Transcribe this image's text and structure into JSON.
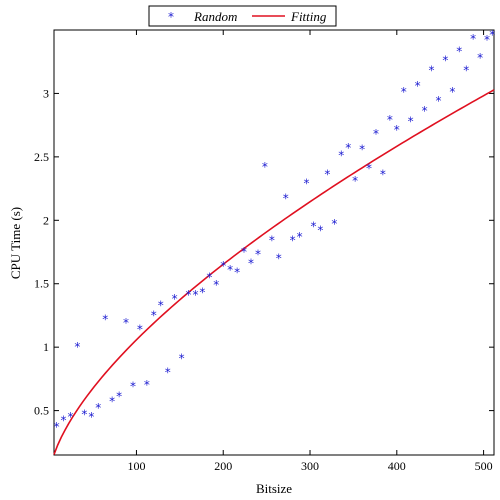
{
  "chart_data": {
    "type": "scatter",
    "title": "",
    "xlabel": "Bitsize",
    "ylabel": "CPU Time (s)",
    "xlim": [
      5,
      512
    ],
    "ylim": [
      0.15,
      3.5
    ],
    "x_ticks": [
      100,
      200,
      300,
      400,
      500
    ],
    "y_ticks": [
      0.5,
      1,
      1.5,
      2,
      2.5,
      3
    ],
    "x_tick_labels": [
      "100",
      "200",
      "300",
      "400",
      "500"
    ],
    "y_tick_labels": [
      "0.5",
      "1",
      "1.5",
      "2",
      "2.5",
      "3"
    ],
    "grid": false,
    "legend_position": "top-center",
    "series": [
      {
        "name": "Random",
        "kind": "scatter",
        "marker": "*",
        "color": "#1a1ad0",
        "points": [
          [
            8,
            0.37
          ],
          [
            16,
            0.42
          ],
          [
            24,
            0.45
          ],
          [
            32,
            1.0
          ],
          [
            40,
            0.47
          ],
          [
            48,
            0.45
          ],
          [
            56,
            0.52
          ],
          [
            64,
            1.22
          ],
          [
            72,
            0.57
          ],
          [
            80,
            0.61
          ],
          [
            88,
            1.19
          ],
          [
            96,
            0.69
          ],
          [
            104,
            1.14
          ],
          [
            112,
            0.7
          ],
          [
            120,
            1.25
          ],
          [
            128,
            1.33
          ],
          [
            136,
            0.8
          ],
          [
            144,
            1.38
          ],
          [
            152,
            0.91
          ],
          [
            160,
            1.41
          ],
          [
            168,
            1.41
          ],
          [
            176,
            1.43
          ],
          [
            184,
            1.55
          ],
          [
            192,
            1.49
          ],
          [
            200,
            1.64
          ],
          [
            208,
            1.61
          ],
          [
            216,
            1.59
          ],
          [
            224,
            1.75
          ],
          [
            232,
            1.66
          ],
          [
            240,
            1.73
          ],
          [
            248,
            2.42
          ],
          [
            256,
            1.84
          ],
          [
            264,
            1.7
          ],
          [
            272,
            2.17
          ],
          [
            280,
            1.84
          ],
          [
            288,
            1.87
          ],
          [
            296,
            2.29
          ],
          [
            304,
            1.95
          ],
          [
            312,
            1.92
          ],
          [
            320,
            2.36
          ],
          [
            328,
            1.97
          ],
          [
            336,
            2.51
          ],
          [
            344,
            2.57
          ],
          [
            352,
            2.31
          ],
          [
            360,
            2.56
          ],
          [
            368,
            2.41
          ],
          [
            376,
            2.68
          ],
          [
            384,
            2.36
          ],
          [
            392,
            2.79
          ],
          [
            400,
            2.71
          ],
          [
            408,
            3.01
          ],
          [
            416,
            2.78
          ],
          [
            424,
            3.06
          ],
          [
            432,
            2.86
          ],
          [
            440,
            3.18
          ],
          [
            448,
            2.94
          ],
          [
            456,
            3.26
          ],
          [
            464,
            3.01
          ],
          [
            472,
            3.33
          ],
          [
            480,
            3.18
          ],
          [
            488,
            3.43
          ],
          [
            496,
            3.28
          ],
          [
            504,
            3.42
          ],
          [
            510,
            3.46
          ]
        ]
      },
      {
        "name": "Fitting",
        "kind": "line",
        "color": "#e01020",
        "model": "y = a * x^b",
        "a": 0.0545,
        "b": 0.644,
        "x_range": [
          5,
          512
        ]
      }
    ]
  }
}
